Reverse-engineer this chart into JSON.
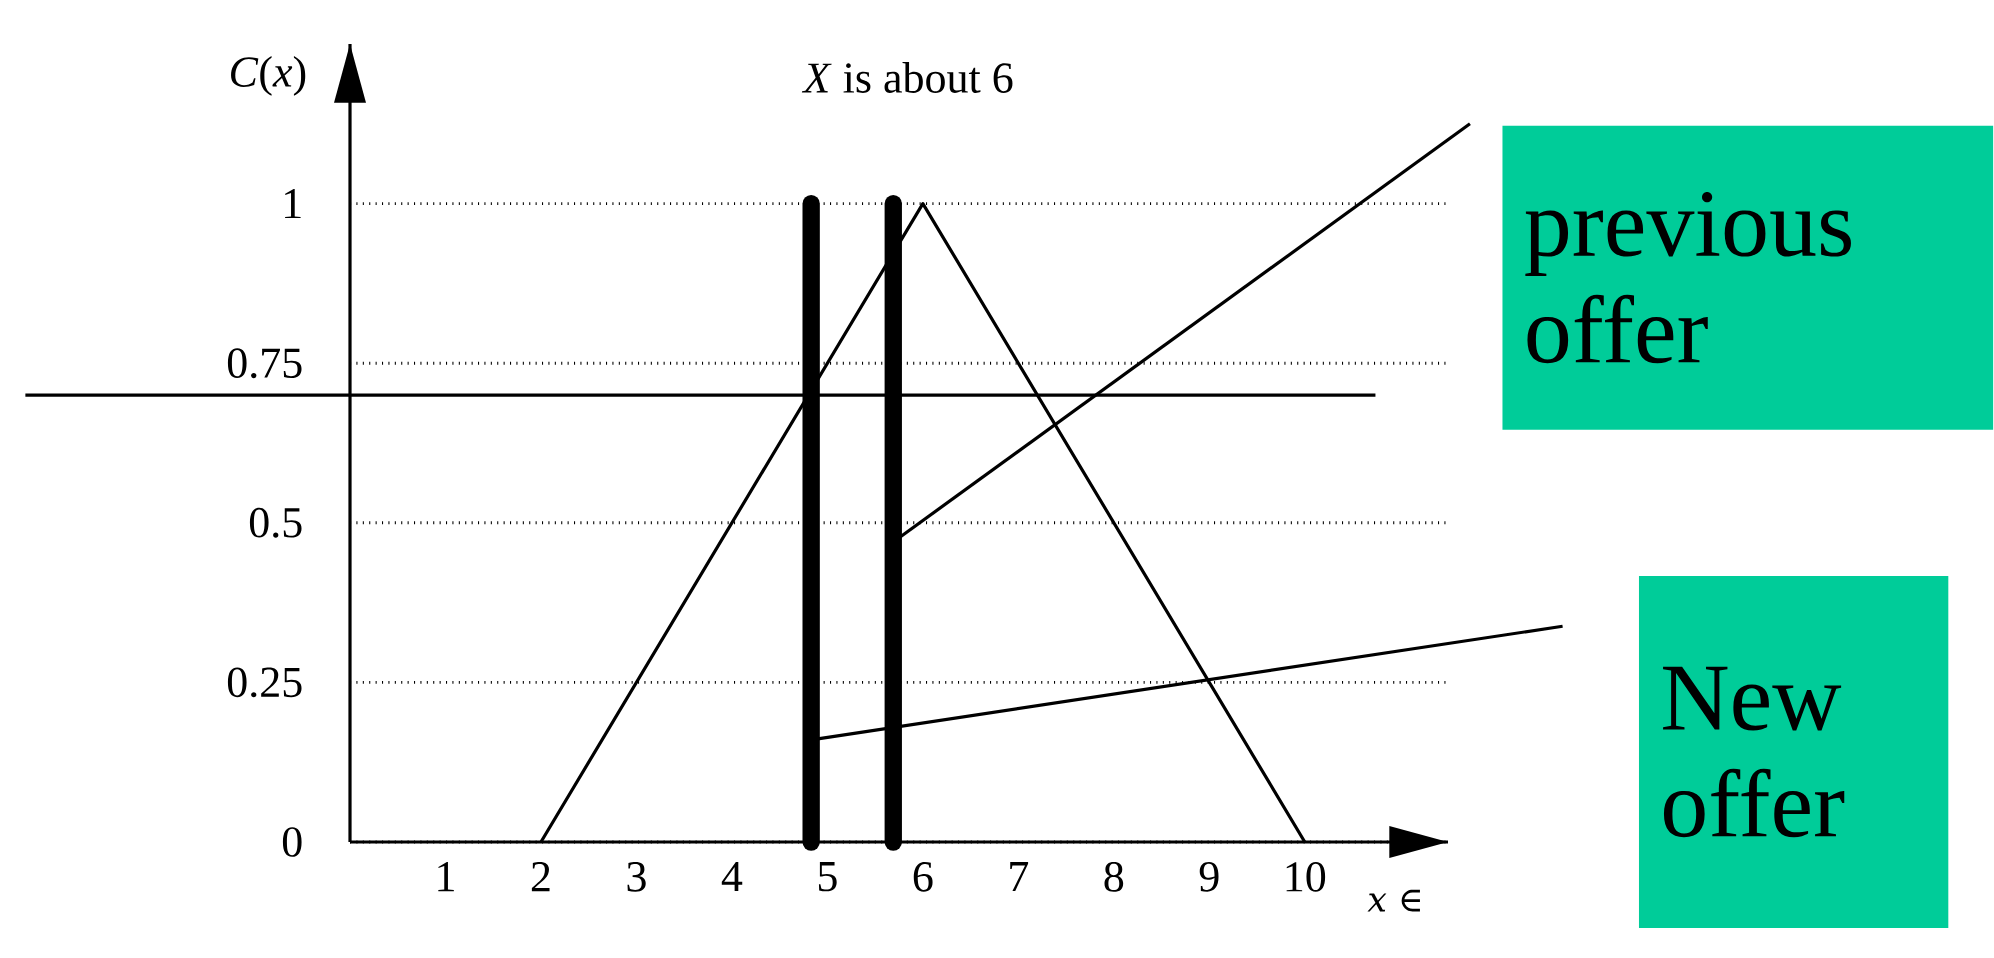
{
  "chart_data": {
    "type": "line",
    "title": "*X* is about 6",
    "xlabel": "*x* ∈",
    "ylabel": "*C*(*x*)",
    "xlim": [
      0,
      11.5
    ],
    "ylim": [
      0,
      1.25
    ],
    "xticks": [
      1,
      2,
      3,
      4,
      5,
      6,
      7,
      8,
      9,
      10
    ],
    "yticks": [
      0,
      0.25,
      0.5,
      0.75,
      1
    ],
    "grid": "y",
    "marker": "none",
    "line_style": "solid",
    "series": [
      {
        "color": "#000000",
        "x": [
          2,
          6,
          10
        ],
        "values": [
          0,
          1,
          0
        ]
      }
    ],
    "ref_lines": [
      {
        "axis": "x",
        "value": 4.83,
        "color": "#000000"
      },
      {
        "axis": "x",
        "value": 5.69,
        "color": "#000000"
      },
      {
        "axis": "y",
        "value": 0.7,
        "color": "#000000"
      }
    ],
    "annotations": [
      {
        "text": "previous offer",
        "x": 5.69,
        "y": 0.47
      },
      {
        "text": "New offer",
        "x": 4.83,
        "y": 0.16
      }
    ]
  }
}
